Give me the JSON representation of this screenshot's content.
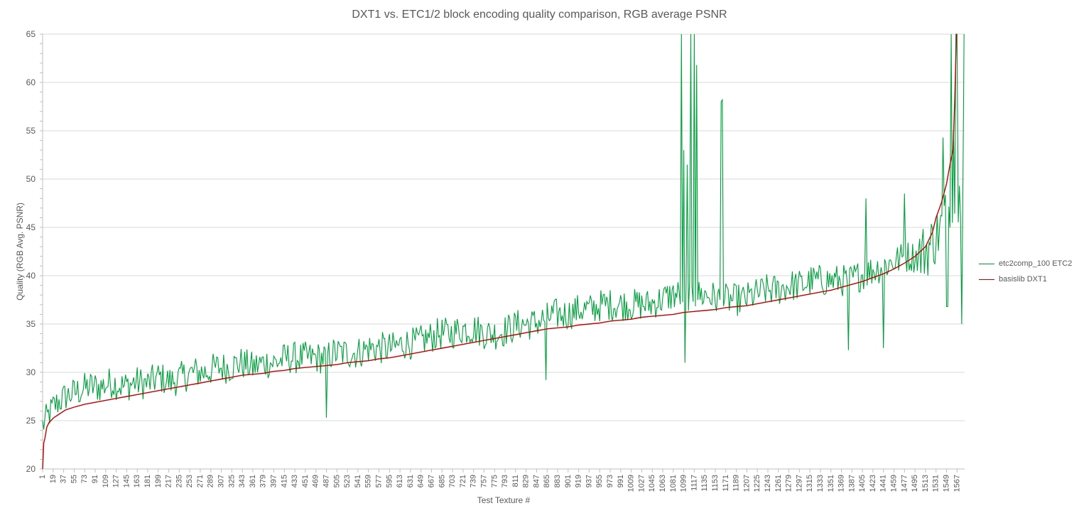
{
  "chart_data": {
    "type": "line",
    "title": "DXT1 vs. ETC1/2 block encoding quality comparison, RGB average PSNR",
    "xlabel": "Test Texture #",
    "ylabel": "Quality (RGB Avg. PSNR)",
    "ylim": [
      20,
      65
    ],
    "yticks": [
      20,
      25,
      30,
      35,
      40,
      45,
      50,
      55,
      60,
      65
    ],
    "xlim": [
      1,
      1580
    ],
    "xticks": [
      1,
      19,
      37,
      55,
      73,
      91,
      109,
      127,
      145,
      163,
      181,
      199,
      217,
      235,
      253,
      271,
      289,
      307,
      325,
      343,
      361,
      379,
      397,
      415,
      433,
      451,
      469,
      487,
      505,
      523,
      541,
      559,
      577,
      595,
      613,
      631,
      649,
      667,
      685,
      703,
      721,
      739,
      757,
      775,
      793,
      811,
      829,
      847,
      865,
      883,
      901,
      919,
      937,
      955,
      973,
      991,
      1009,
      1027,
      1045,
      1063,
      1081,
      1099,
      1117,
      1135,
      1153,
      1171,
      1189,
      1207,
      1225,
      1243,
      1261,
      1279,
      1297,
      1315,
      1333,
      1351,
      1369,
      1387,
      1405,
      1423,
      1441,
      1459,
      1477,
      1495,
      1513,
      1531,
      1549,
      1567
    ],
    "grid": true,
    "legend_position": "right",
    "series": [
      {
        "name": "etc2comp_100 ETC2",
        "color": "#00a03c",
        "trend": "noisy, generally above basislib DXT1 by about 1-3 dB",
        "x": [
          1,
          20,
          40,
          60,
          80,
          100,
          120,
          140,
          160,
          180,
          200,
          220,
          240,
          260,
          280,
          300,
          320,
          340,
          360,
          380,
          400,
          420,
          440,
          460,
          480,
          500,
          520,
          540,
          560,
          580,
          600,
          620,
          640,
          660,
          680,
          700,
          720,
          740,
          760,
          780,
          800,
          820,
          840,
          860,
          880,
          900,
          920,
          940,
          960,
          980,
          1000,
          1020,
          1040,
          1060,
          1080,
          1100,
          1120,
          1140,
          1160,
          1180,
          1200,
          1220,
          1240,
          1260,
          1280,
          1300,
          1320,
          1340,
          1360,
          1380,
          1400,
          1420,
          1440,
          1460,
          1480,
          1500,
          1520,
          1540,
          1560,
          1580
        ],
        "values": [
          24.5,
          26.5,
          27.5,
          28,
          28.5,
          28.5,
          29,
          28.5,
          29,
          28.8,
          29.5,
          29,
          29.5,
          30,
          30,
          30.5,
          30.5,
          31,
          30.5,
          31,
          31,
          31.5,
          31.5,
          31.5,
          31.5,
          32,
          32,
          32,
          32.5,
          32.5,
          32.5,
          33,
          33,
          33.5,
          34,
          34,
          34.5,
          34.5,
          34,
          34,
          34.5,
          35,
          35,
          35.5,
          36,
          36,
          36.5,
          36.5,
          37,
          37,
          37,
          37,
          37,
          37.5,
          38,
          38,
          38,
          38,
          37.5,
          37.5,
          37.5,
          38,
          38.5,
          38.5,
          39,
          39,
          39.5,
          39.5,
          39.5,
          39.5,
          40,
          40.5,
          41,
          41.5,
          42,
          42,
          43,
          45,
          48,
          49
        ],
        "spikes": [
          {
            "x": 487,
            "y": 25.3
          },
          {
            "x": 863,
            "y": 29.2
          },
          {
            "x": 1095,
            "y": 65
          },
          {
            "x": 1099,
            "y": 53
          },
          {
            "x": 1101,
            "y": 31
          },
          {
            "x": 1105,
            "y": 51.5
          },
          {
            "x": 1111,
            "y": 65
          },
          {
            "x": 1117,
            "y": 65
          },
          {
            "x": 1121,
            "y": 61.8
          },
          {
            "x": 1163,
            "y": 58
          },
          {
            "x": 1165,
            "y": 58.2
          },
          {
            "x": 1381,
            "y": 32.3
          },
          {
            "x": 1411,
            "y": 48
          },
          {
            "x": 1441,
            "y": 32.5
          },
          {
            "x": 1477,
            "y": 48.5
          },
          {
            "x": 1543,
            "y": 54.3
          },
          {
            "x": 1550,
            "y": 36.8
          },
          {
            "x": 1557,
            "y": 65
          },
          {
            "x": 1561,
            "y": 55
          },
          {
            "x": 1566,
            "y": 65
          },
          {
            "x": 1571,
            "y": 49.3
          },
          {
            "x": 1575,
            "y": 35
          },
          {
            "x": 1579,
            "y": 65
          }
        ]
      },
      {
        "name": "basislib DXT1",
        "color": "#c00000",
        "x": [
          1,
          3,
          5,
          8,
          12,
          20,
          30,
          40,
          55,
          73,
          91,
          109,
          127,
          145,
          163,
          181,
          199,
          217,
          235,
          253,
          271,
          289,
          307,
          325,
          343,
          361,
          379,
          397,
          415,
          433,
          451,
          469,
          487,
          505,
          523,
          541,
          559,
          577,
          595,
          613,
          631,
          649,
          667,
          685,
          703,
          721,
          739,
          757,
          775,
          793,
          811,
          829,
          847,
          865,
          883,
          901,
          919,
          937,
          955,
          973,
          991,
          1009,
          1027,
          1045,
          1063,
          1081,
          1099,
          1117,
          1135,
          1153,
          1171,
          1189,
          1207,
          1225,
          1243,
          1261,
          1279,
          1297,
          1315,
          1333,
          1351,
          1369,
          1387,
          1405,
          1423,
          1441,
          1459,
          1477,
          1495,
          1513,
          1525,
          1531,
          1540,
          1549,
          1555,
          1560,
          1563,
          1566
        ],
        "values": [
          20,
          22.7,
          23.2,
          24.3,
          24.8,
          25.3,
          25.7,
          26.1,
          26.4,
          26.7,
          26.9,
          27.1,
          27.3,
          27.5,
          27.7,
          27.9,
          28.1,
          28.3,
          28.5,
          28.7,
          28.9,
          29.1,
          29.3,
          29.5,
          29.7,
          29.8,
          29.9,
          30.1,
          30.2,
          30.4,
          30.5,
          30.6,
          30.7,
          30.8,
          31,
          31.1,
          31.2,
          31.4,
          31.5,
          31.7,
          31.9,
          32.1,
          32.3,
          32.5,
          32.7,
          32.9,
          33.1,
          33.3,
          33.5,
          33.7,
          33.9,
          34.1,
          34.3,
          34.5,
          34.6,
          34.7,
          34.9,
          35,
          35.1,
          35.3,
          35.4,
          35.5,
          35.7,
          35.8,
          35.9,
          36,
          36.2,
          36.3,
          36.4,
          36.5,
          36.7,
          36.8,
          36.9,
          37.1,
          37.3,
          37.5,
          37.7,
          37.9,
          38.1,
          38.3,
          38.5,
          38.8,
          39.1,
          39.4,
          39.8,
          40.2,
          40.7,
          41.3,
          42,
          43,
          44.5,
          46,
          47.5,
          49.5,
          51.5,
          53,
          58,
          65
        ]
      }
    ]
  }
}
